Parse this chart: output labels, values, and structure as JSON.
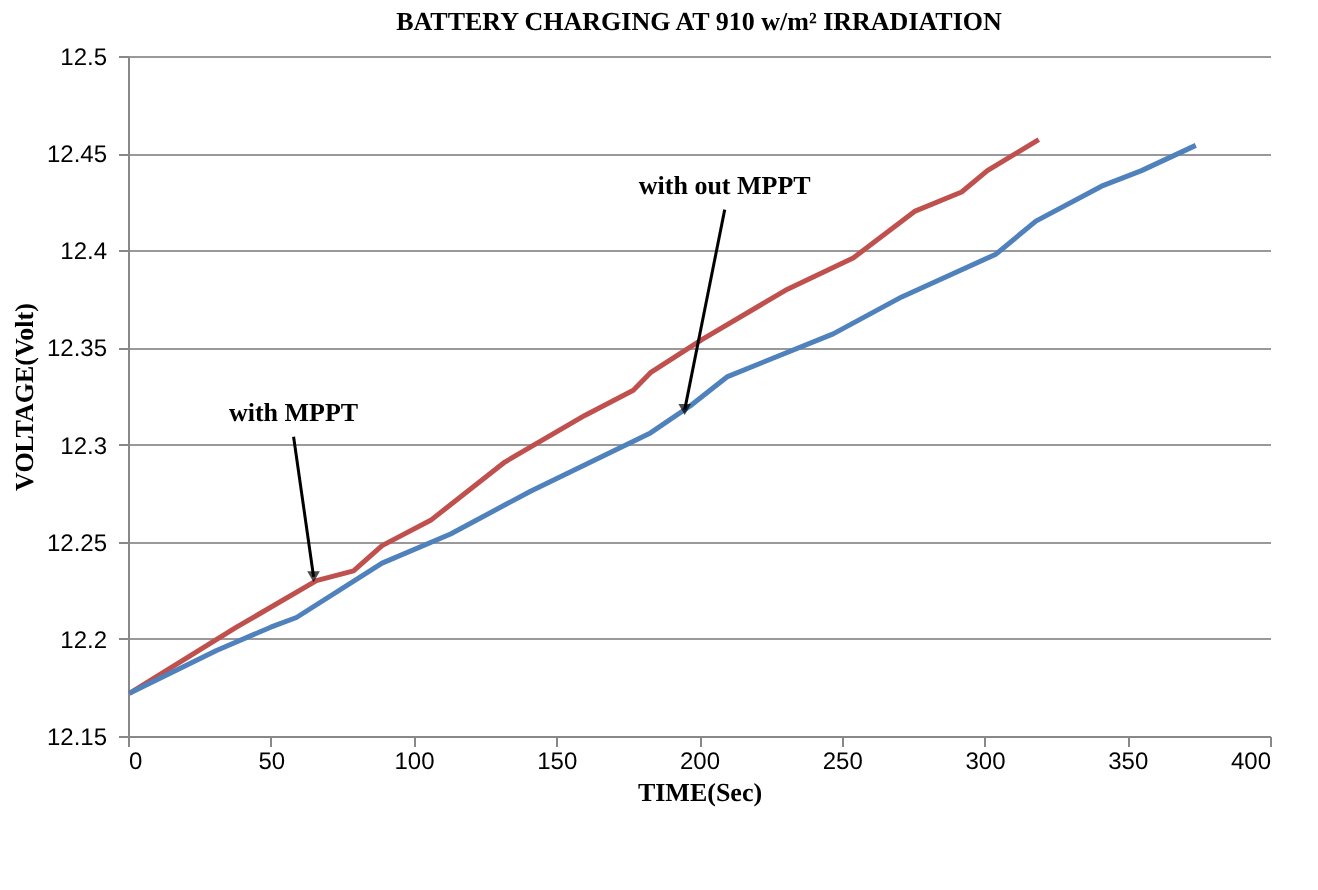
{
  "chart_data": {
    "type": "line",
    "title": "BATTERY CHARGING AT 910 w/m² IRRADIATION",
    "xlabel": "TIME(Sec)",
    "ylabel": "VOLTAGE(Volt)",
    "series": [
      {
        "color": "#c0504d",
        "x": [
          0.5,
          38,
          66,
          79,
          89,
          106,
          132,
          160,
          177,
          183,
          201,
          231,
          254,
          275.5,
          292,
          301,
          319
        ],
        "values": [
          12.172,
          12.206,
          12.23,
          12.235,
          12.248,
          12.261,
          12.291,
          12.315,
          12.328,
          12.337,
          12.354,
          12.38,
          12.396,
          12.42,
          12.43,
          12.441,
          12.457
        ]
      },
      {
        "color": "#4f81bd",
        "x": [
          0.5,
          31,
          50,
          59,
          89,
          113,
          141,
          183,
          197,
          210,
          247,
          271,
          304,
          318,
          341,
          355,
          374
        ],
        "values": [
          12.172,
          12.194,
          12.206,
          12.211,
          12.239,
          12.254,
          12.276,
          12.306,
          12.32,
          12.335,
          12.357,
          12.376,
          12.398,
          12.415,
          12.433,
          12.441,
          12.454
        ]
      }
    ],
    "xlim": [
      0,
      400
    ],
    "xticks": [
      0,
      50,
      100,
      150,
      200,
      250,
      300,
      350,
      400
    ],
    "ylim": [
      12.15,
      12.5
    ],
    "yticks": [
      12.15,
      12.2,
      12.25,
      12.3,
      12.35,
      12.4,
      12.45,
      12.5
    ],
    "grid": "y",
    "line_style": "solid",
    "marker": "none",
    "annotations": [
      {
        "text": "with MPPT",
        "x": 65,
        "y": 12.232
      },
      {
        "text": "with out MPPT",
        "x": 195,
        "y": 12.318
      }
    ]
  }
}
